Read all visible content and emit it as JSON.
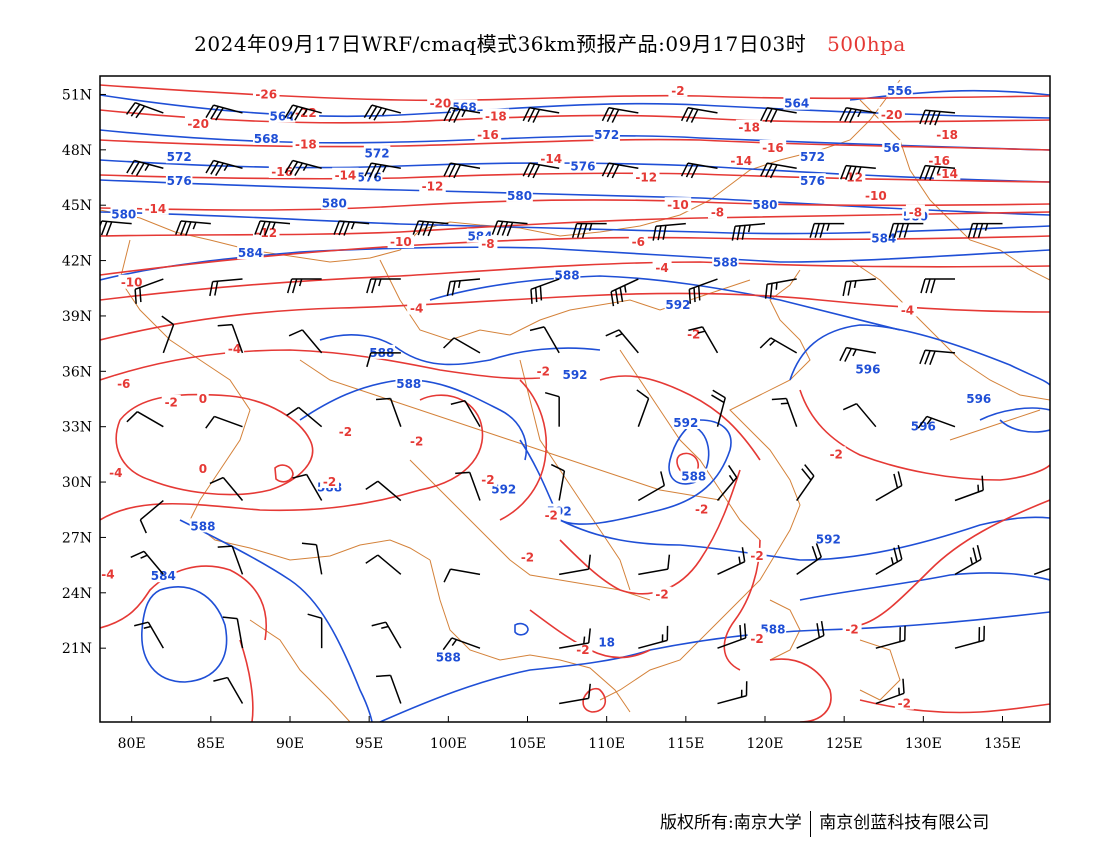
{
  "title": {
    "main": "2024年09月17日WRF/cmaq模式36km预报产品:09月17日03时",
    "level": "500hpa"
  },
  "map": {
    "lon_range": [
      78,
      138
    ],
    "lat_range": [
      17,
      52
    ],
    "x_ticks": [
      "80E",
      "85E",
      "90E",
      "95E",
      "100E",
      "105E",
      "110E",
      "115E",
      "120E",
      "125E",
      "130E",
      "135E"
    ],
    "y_ticks": [
      "51N",
      "48N",
      "45N",
      "42N",
      "39N",
      "36N",
      "33N",
      "30N",
      "27N",
      "24N",
      "21N"
    ],
    "colors": {
      "height_contour": "#1f4fd6",
      "temperature_contour": "#e53935",
      "border": "#d4823a",
      "wind_barb": "#000000"
    },
    "height_labels": [
      {
        "text": "556",
        "lon": 128.5,
        "lat": 51.2
      },
      {
        "text": "564",
        "lon": 122.0,
        "lat": 50.5
      },
      {
        "text": "564",
        "lon": 89.5,
        "lat": 49.8
      },
      {
        "text": "568",
        "lon": 101.0,
        "lat": 50.3
      },
      {
        "text": "568",
        "lon": 88.5,
        "lat": 48.6
      },
      {
        "text": "56",
        "lon": 128.0,
        "lat": 48.1
      },
      {
        "text": "572",
        "lon": 110.0,
        "lat": 48.8
      },
      {
        "text": "572",
        "lon": 95.5,
        "lat": 47.8
      },
      {
        "text": "572",
        "lon": 83.0,
        "lat": 47.6
      },
      {
        "text": "572",
        "lon": 123.0,
        "lat": 47.6
      },
      {
        "text": "576",
        "lon": 108.5,
        "lat": 47.1
      },
      {
        "text": "576",
        "lon": 95.0,
        "lat": 46.5
      },
      {
        "text": "576",
        "lon": 83.0,
        "lat": 46.3
      },
      {
        "text": "576",
        "lon": 123.0,
        "lat": 46.3
      },
      {
        "text": "580",
        "lon": 104.5,
        "lat": 45.5
      },
      {
        "text": "580",
        "lon": 92.8,
        "lat": 45.1
      },
      {
        "text": "580",
        "lon": 79.5,
        "lat": 44.5
      },
      {
        "text": "580",
        "lon": 120.0,
        "lat": 45.0
      },
      {
        "text": "580",
        "lon": 129.5,
        "lat": 44.4
      },
      {
        "text": "584",
        "lon": 102.0,
        "lat": 43.3
      },
      {
        "text": "584",
        "lon": 87.5,
        "lat": 42.4
      },
      {
        "text": "584",
        "lon": 127.5,
        "lat": 43.2
      },
      {
        "text": "588",
        "lon": 117.5,
        "lat": 41.9
      },
      {
        "text": "588",
        "lon": 107.5,
        "lat": 41.2
      },
      {
        "text": "588",
        "lon": 95.8,
        "lat": 37.0
      },
      {
        "text": "588",
        "lon": 97.5,
        "lat": 35.3
      },
      {
        "text": "592",
        "lon": 114.5,
        "lat": 39.6
      },
      {
        "text": "592",
        "lon": 108.0,
        "lat": 35.8
      },
      {
        "text": "592",
        "lon": 115.0,
        "lat": 33.2
      },
      {
        "text": "588",
        "lon": 115.5,
        "lat": 30.3
      },
      {
        "text": "588",
        "lon": 92.5,
        "lat": 29.7
      },
      {
        "text": "592",
        "lon": 103.5,
        "lat": 29.6
      },
      {
        "text": "592",
        "lon": 107.0,
        "lat": 28.4
      },
      {
        "text": "596",
        "lon": 126.5,
        "lat": 36.1
      },
      {
        "text": "596",
        "lon": 133.5,
        "lat": 34.5
      },
      {
        "text": "596",
        "lon": 130.0,
        "lat": 33.0
      },
      {
        "text": "588",
        "lon": 84.5,
        "lat": 27.6
      },
      {
        "text": "584",
        "lon": 82.0,
        "lat": 24.9
      },
      {
        "text": "592",
        "lon": 124.0,
        "lat": 26.9
      },
      {
        "text": "588",
        "lon": 120.5,
        "lat": 22.0
      },
      {
        "text": "588",
        "lon": 100.0,
        "lat": 20.5
      },
      {
        "text": "18",
        "lon": 110.0,
        "lat": 21.3
      }
    ],
    "temperature_labels": [
      {
        "text": "-26",
        "lon": 88.5,
        "lat": 51.0
      },
      {
        "text": "-22",
        "lon": 91.0,
        "lat": 50.0
      },
      {
        "text": "-20",
        "lon": 99.5,
        "lat": 50.5
      },
      {
        "text": "-20",
        "lon": 84.2,
        "lat": 49.4
      },
      {
        "text": "-20",
        "lon": 128.0,
        "lat": 49.9
      },
      {
        "text": "-18",
        "lon": 103.0,
        "lat": 49.8
      },
      {
        "text": "-18",
        "lon": 91.0,
        "lat": 48.3
      },
      {
        "text": "-18",
        "lon": 119.0,
        "lat": 49.2
      },
      {
        "text": "-18",
        "lon": 131.5,
        "lat": 48.8
      },
      {
        "text": "-2",
        "lon": 114.5,
        "lat": 51.2
      },
      {
        "text": "-16",
        "lon": 102.5,
        "lat": 48.8
      },
      {
        "text": "-16",
        "lon": 89.5,
        "lat": 46.8
      },
      {
        "text": "-16",
        "lon": 120.5,
        "lat": 48.1
      },
      {
        "text": "-16",
        "lon": 131.0,
        "lat": 47.4
      },
      {
        "text": "-14",
        "lon": 106.5,
        "lat": 47.5
      },
      {
        "text": "-14",
        "lon": 93.5,
        "lat": 46.6
      },
      {
        "text": "-14",
        "lon": 81.5,
        "lat": 44.8
      },
      {
        "text": "-14",
        "lon": 118.5,
        "lat": 47.4
      },
      {
        "text": "-14",
        "lon": 131.5,
        "lat": 46.7
      },
      {
        "text": "-12",
        "lon": 99.0,
        "lat": 46.0
      },
      {
        "text": "-12",
        "lon": 88.5,
        "lat": 43.5
      },
      {
        "text": "-12",
        "lon": 112.5,
        "lat": 46.5
      },
      {
        "text": "-12",
        "lon": 125.5,
        "lat": 46.5
      },
      {
        "text": "-10",
        "lon": 114.5,
        "lat": 45.0
      },
      {
        "text": "-10",
        "lon": 97.0,
        "lat": 43.0
      },
      {
        "text": "-10",
        "lon": 80.0,
        "lat": 40.8
      },
      {
        "text": "-10",
        "lon": 127.0,
        "lat": 45.5
      },
      {
        "text": "-8",
        "lon": 117.0,
        "lat": 44.6
      },
      {
        "text": "-8",
        "lon": 102.5,
        "lat": 42.9
      },
      {
        "text": "-8",
        "lon": 129.5,
        "lat": 44.6
      },
      {
        "text": "-6",
        "lon": 112.0,
        "lat": 43.0
      },
      {
        "text": "-6",
        "lon": 79.5,
        "lat": 35.3
      },
      {
        "text": "-4",
        "lon": 113.5,
        "lat": 41.6
      },
      {
        "text": "-4",
        "lon": 98.0,
        "lat": 39.4
      },
      {
        "text": "-4",
        "lon": 86.5,
        "lat": 37.2
      },
      {
        "text": "-4",
        "lon": 129.0,
        "lat": 39.3
      },
      {
        "text": "-4",
        "lon": 79.0,
        "lat": 30.5
      },
      {
        "text": "-4",
        "lon": 78.5,
        "lat": 25.0
      },
      {
        "text": "-2",
        "lon": 115.5,
        "lat": 38.0
      },
      {
        "text": "-2",
        "lon": 82.5,
        "lat": 34.3
      },
      {
        "text": "-2",
        "lon": 93.5,
        "lat": 32.7
      },
      {
        "text": "-2",
        "lon": 98.0,
        "lat": 32.2
      },
      {
        "text": "-2",
        "lon": 106.0,
        "lat": 36.0
      },
      {
        "text": "-2",
        "lon": 92.5,
        "lat": 30.0
      },
      {
        "text": "-2",
        "lon": 102.5,
        "lat": 30.1
      },
      {
        "text": "-2",
        "lon": 106.5,
        "lat": 28.2
      },
      {
        "text": "-2",
        "lon": 105.0,
        "lat": 25.9
      },
      {
        "text": "-2",
        "lon": 116.0,
        "lat": 28.5
      },
      {
        "text": "-2",
        "lon": 119.5,
        "lat": 26.0
      },
      {
        "text": "-2",
        "lon": 119.5,
        "lat": 21.5
      },
      {
        "text": "-2",
        "lon": 108.5,
        "lat": 20.9
      },
      {
        "text": "-2",
        "lon": 125.5,
        "lat": 22.0
      },
      {
        "text": "-2",
        "lon": 124.5,
        "lat": 31.5
      },
      {
        "text": "-2",
        "lon": 128.8,
        "lat": 18.0
      },
      {
        "text": "-2",
        "lon": 113.5,
        "lat": 23.9
      },
      {
        "text": "0",
        "lon": 84.5,
        "lat": 34.5
      },
      {
        "text": "0",
        "lon": 84.5,
        "lat": 30.7
      }
    ],
    "wind_barbs": [
      {
        "lon": 82,
        "lat": 50,
        "dir": 290,
        "speed": 30
      },
      {
        "lon": 87,
        "lat": 50,
        "dir": 285,
        "speed": 30
      },
      {
        "lon": 92,
        "lat": 50,
        "dir": 285,
        "speed": 35
      },
      {
        "lon": 97,
        "lat": 50,
        "dir": 285,
        "speed": 35
      },
      {
        "lon": 102,
        "lat": 50,
        "dir": 280,
        "speed": 35
      },
      {
        "lon": 107,
        "lat": 50,
        "dir": 280,
        "speed": 30
      },
      {
        "lon": 112,
        "lat": 50,
        "dir": 280,
        "speed": 30
      },
      {
        "lon": 117,
        "lat": 50,
        "dir": 280,
        "speed": 30
      },
      {
        "lon": 122,
        "lat": 50,
        "dir": 280,
        "speed": 30
      },
      {
        "lon": 127,
        "lat": 50,
        "dir": 280,
        "speed": 35
      },
      {
        "lon": 132,
        "lat": 50,
        "dir": 275,
        "speed": 40
      },
      {
        "lon": 82,
        "lat": 47,
        "dir": 285,
        "speed": 35
      },
      {
        "lon": 87,
        "lat": 47,
        "dir": 285,
        "speed": 35
      },
      {
        "lon": 92,
        "lat": 47,
        "dir": 285,
        "speed": 35
      },
      {
        "lon": 97,
        "lat": 47,
        "dir": 280,
        "speed": 35
      },
      {
        "lon": 102,
        "lat": 47,
        "dir": 280,
        "speed": 30
      },
      {
        "lon": 107,
        "lat": 47,
        "dir": 280,
        "speed": 30
      },
      {
        "lon": 112,
        "lat": 47,
        "dir": 280,
        "speed": 30
      },
      {
        "lon": 117,
        "lat": 47,
        "dir": 280,
        "speed": 30
      },
      {
        "lon": 122,
        "lat": 47,
        "dir": 280,
        "speed": 30
      },
      {
        "lon": 127,
        "lat": 47,
        "dir": 275,
        "speed": 35
      },
      {
        "lon": 132,
        "lat": 47,
        "dir": 275,
        "speed": 35
      },
      {
        "lon": 80,
        "lat": 44,
        "dir": 275,
        "speed": 30
      },
      {
        "lon": 85,
        "lat": 44,
        "dir": 275,
        "speed": 35
      },
      {
        "lon": 90,
        "lat": 44,
        "dir": 275,
        "speed": 35
      },
      {
        "lon": 95,
        "lat": 44,
        "dir": 275,
        "speed": 35
      },
      {
        "lon": 100,
        "lat": 44,
        "dir": 275,
        "speed": 40
      },
      {
        "lon": 105,
        "lat": 44,
        "dir": 275,
        "speed": 40
      },
      {
        "lon": 110,
        "lat": 44,
        "dir": 270,
        "speed": 35
      },
      {
        "lon": 115,
        "lat": 44,
        "dir": 265,
        "speed": 30
      },
      {
        "lon": 120,
        "lat": 44,
        "dir": 265,
        "speed": 35
      },
      {
        "lon": 125,
        "lat": 44,
        "dir": 270,
        "speed": 35
      },
      {
        "lon": 130,
        "lat": 44,
        "dir": 270,
        "speed": 40
      },
      {
        "lon": 135,
        "lat": 44,
        "dir": 270,
        "speed": 35
      },
      {
        "lon": 82,
        "lat": 41,
        "dir": 250,
        "speed": 20
      },
      {
        "lon": 87,
        "lat": 41,
        "dir": 265,
        "speed": 20
      },
      {
        "lon": 92,
        "lat": 41,
        "dir": 270,
        "speed": 25
      },
      {
        "lon": 97,
        "lat": 41,
        "dir": 270,
        "speed": 25
      },
      {
        "lon": 102,
        "lat": 41,
        "dir": 265,
        "speed": 25
      },
      {
        "lon": 107,
        "lat": 41,
        "dir": 250,
        "speed": 30
      },
      {
        "lon": 112,
        "lat": 41,
        "dir": 245,
        "speed": 35
      },
      {
        "lon": 117,
        "lat": 41,
        "dir": 250,
        "speed": 30
      },
      {
        "lon": 122,
        "lat": 41,
        "dir": 260,
        "speed": 25
      },
      {
        "lon": 127,
        "lat": 41,
        "dir": 265,
        "speed": 25
      },
      {
        "lon": 132,
        "lat": 41,
        "dir": 270,
        "speed": 30
      },
      {
        "lon": 82,
        "lat": 37,
        "dir": 20,
        "speed": 10
      },
      {
        "lon": 87,
        "lat": 37,
        "dir": 340,
        "speed": 10
      },
      {
        "lon": 92,
        "lat": 37,
        "dir": 320,
        "speed": 10
      },
      {
        "lon": 97,
        "lat": 37,
        "dir": 270,
        "speed": 10
      },
      {
        "lon": 102,
        "lat": 37,
        "dir": 300,
        "speed": 10
      },
      {
        "lon": 107,
        "lat": 37,
        "dir": 330,
        "speed": 10
      },
      {
        "lon": 112,
        "lat": 37,
        "dir": 320,
        "speed": 15
      },
      {
        "lon": 117,
        "lat": 37,
        "dir": 330,
        "speed": 15
      },
      {
        "lon": 122,
        "lat": 37,
        "dir": 300,
        "speed": 15
      },
      {
        "lon": 127,
        "lat": 37,
        "dir": 280,
        "speed": 25
      },
      {
        "lon": 132,
        "lat": 37,
        "dir": 275,
        "speed": 30
      },
      {
        "lon": 82,
        "lat": 33,
        "dir": 300,
        "speed": 10
      },
      {
        "lon": 87,
        "lat": 33,
        "dir": 290,
        "speed": 10
      },
      {
        "lon": 92,
        "lat": 33,
        "dir": 310,
        "speed": 10
      },
      {
        "lon": 97,
        "lat": 33,
        "dir": 340,
        "speed": 10
      },
      {
        "lon": 102,
        "lat": 33,
        "dir": 330,
        "speed": 10
      },
      {
        "lon": 107,
        "lat": 33,
        "dir": 0,
        "speed": 10
      },
      {
        "lon": 112,
        "lat": 33,
        "dir": 20,
        "speed": 10
      },
      {
        "lon": 117,
        "lat": 33,
        "dir": 15,
        "speed": 20
      },
      {
        "lon": 122,
        "lat": 33,
        "dir": 340,
        "speed": 15
      },
      {
        "lon": 127,
        "lat": 33,
        "dir": 320,
        "speed": 10
      },
      {
        "lon": 132,
        "lat": 33,
        "dir": 290,
        "speed": 15
      },
      {
        "lon": 82,
        "lat": 29,
        "dir": 230,
        "speed": 10
      },
      {
        "lon": 87,
        "lat": 29,
        "dir": 320,
        "speed": 10
      },
      {
        "lon": 92,
        "lat": 29,
        "dir": 330,
        "speed": 10
      },
      {
        "lon": 97,
        "lat": 29,
        "dir": 310,
        "speed": 10
      },
      {
        "lon": 102,
        "lat": 29,
        "dir": 340,
        "speed": 10
      },
      {
        "lon": 107,
        "lat": 29,
        "dir": 10,
        "speed": 10
      },
      {
        "lon": 112,
        "lat": 29,
        "dir": 60,
        "speed": 10
      },
      {
        "lon": 117,
        "lat": 29,
        "dir": 40,
        "speed": 15
      },
      {
        "lon": 122,
        "lat": 29,
        "dir": 35,
        "speed": 20
      },
      {
        "lon": 127,
        "lat": 29,
        "dir": 60,
        "speed": 20
      },
      {
        "lon": 132,
        "lat": 29,
        "dir": 70,
        "speed": 15
      },
      {
        "lon": 82,
        "lat": 25,
        "dir": 320,
        "speed": 15
      },
      {
        "lon": 87,
        "lat": 25,
        "dir": 340,
        "speed": 10
      },
      {
        "lon": 92,
        "lat": 25,
        "dir": 350,
        "speed": 10
      },
      {
        "lon": 97,
        "lat": 25,
        "dir": 310,
        "speed": 10
      },
      {
        "lon": 102,
        "lat": 25,
        "dir": 280,
        "speed": 10
      },
      {
        "lon": 107,
        "lat": 25,
        "dir": 80,
        "speed": 10
      },
      {
        "lon": 112,
        "lat": 25,
        "dir": 80,
        "speed": 10
      },
      {
        "lon": 117,
        "lat": 25,
        "dir": 65,
        "speed": 15
      },
      {
        "lon": 122,
        "lat": 25,
        "dir": 55,
        "speed": 20
      },
      {
        "lon": 127,
        "lat": 25,
        "dir": 60,
        "speed": 25
      },
      {
        "lon": 132,
        "lat": 25,
        "dir": 60,
        "speed": 25
      },
      {
        "lon": 137,
        "lat": 25,
        "dir": 70,
        "speed": 20
      },
      {
        "lon": 82,
        "lat": 21,
        "dir": 330,
        "speed": 15
      },
      {
        "lon": 87,
        "lat": 21,
        "dir": 350,
        "speed": 10
      },
      {
        "lon": 92,
        "lat": 21,
        "dir": 0,
        "speed": 10
      },
      {
        "lon": 97,
        "lat": 21,
        "dir": 330,
        "speed": 15
      },
      {
        "lon": 102,
        "lat": 21,
        "dir": 290,
        "speed": 15
      },
      {
        "lon": 107,
        "lat": 21,
        "dir": 80,
        "speed": 15
      },
      {
        "lon": 112,
        "lat": 21,
        "dir": 75,
        "speed": 15
      },
      {
        "lon": 117,
        "lat": 21,
        "dir": 70,
        "speed": 20
      },
      {
        "lon": 122,
        "lat": 21,
        "dir": 65,
        "speed": 20
      },
      {
        "lon": 127,
        "lat": 21,
        "dir": 75,
        "speed": 20
      },
      {
        "lon": 132,
        "lat": 21,
        "dir": 75,
        "speed": 20
      },
      {
        "lon": 87,
        "lat": 18,
        "dir": 330,
        "speed": 10
      },
      {
        "lon": 97,
        "lat": 18,
        "dir": 340,
        "speed": 10
      },
      {
        "lon": 107,
        "lat": 18,
        "dir": 80,
        "speed": 10
      },
      {
        "lon": 117,
        "lat": 18,
        "dir": 75,
        "speed": 15
      },
      {
        "lon": 127,
        "lat": 18,
        "dir": 70,
        "speed": 15
      }
    ]
  },
  "footer": {
    "copyright": "版权所有:南京大学",
    "company": "南京创蓝科技有限公司"
  }
}
